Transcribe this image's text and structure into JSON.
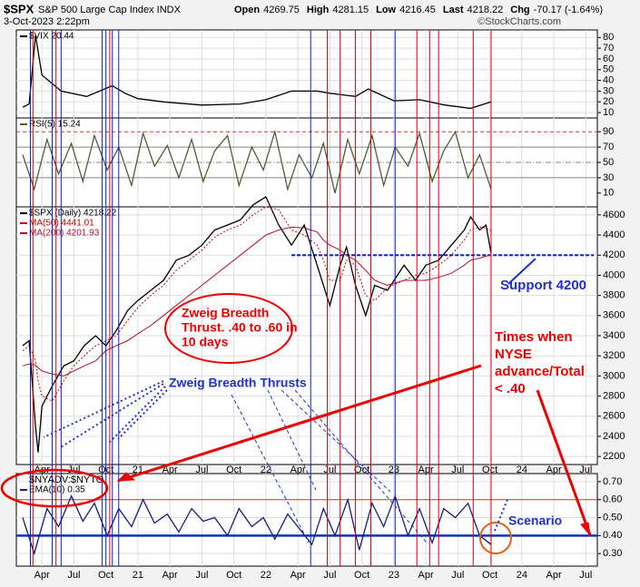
{
  "header": {
    "symbol": "$SPX",
    "name": "S&P 500 Large Cap Index INDX",
    "date": "3-Oct-2023 2:22pm",
    "quote": [
      {
        "label": "Open",
        "value": "4269.75"
      },
      {
        "label": "High",
        "value": "4281.15"
      },
      {
        "label": "Low",
        "value": "4216.45"
      },
      {
        "label": "Last",
        "value": "4218.22"
      },
      {
        "label": "Chg",
        "value": "-70.17 (-1.64%)"
      }
    ],
    "credit": "©StockCharts.com"
  },
  "annotations": {
    "zweig_thrust": [
      "Zweig Breadth",
      "Thrust. .40 to .60 in",
      "10 days"
    ],
    "thrusts": "Zweig Breadth Thrusts",
    "support": "Support 4200",
    "times": [
      "Times when",
      "NYSE",
      "advance/Total",
      "< .40"
    ],
    "scenario": "Scenario"
  },
  "markers": {
    "red": [
      2020.18,
      2020.36,
      2020.78,
      2022.48,
      2022.58,
      2022.7,
      2022.82,
      2023.18,
      2023.28,
      2023.35,
      2023.62,
      2023.76
    ],
    "blue": [
      2020.16,
      2020.33,
      2020.4,
      2020.72,
      2020.75,
      2020.8,
      2020.85,
      2022.35,
      2023.01
    ]
  },
  "xlim": [
    2020.05,
    2024.59
  ],
  "xticks": [
    {
      "value": 2020.25,
      "label": "Apr"
    },
    {
      "value": 2020.5,
      "label": "Jul"
    },
    {
      "value": 2020.75,
      "label": "Oct"
    },
    {
      "value": 2021.0,
      "label": "21"
    },
    {
      "value": 2021.25,
      "label": "Apr"
    },
    {
      "value": 2021.5,
      "label": "Jul"
    },
    {
      "value": 2021.75,
      "label": "Oct"
    },
    {
      "value": 2022.0,
      "label": "22"
    },
    {
      "value": 2022.25,
      "label": "Apr"
    },
    {
      "value": 2022.5,
      "label": "Jul"
    },
    {
      "value": 2022.75,
      "label": "Oct"
    },
    {
      "value": 2023.0,
      "label": "23"
    },
    {
      "value": 2023.25,
      "label": "Apr"
    },
    {
      "value": 2023.5,
      "label": "Jul"
    },
    {
      "value": 2023.75,
      "label": "Oct"
    },
    {
      "value": 2024.0,
      "label": "24"
    },
    {
      "value": 2024.25,
      "label": "Apr"
    },
    {
      "value": 2024.5,
      "label": "Jul"
    }
  ],
  "chart_data": [
    {
      "type": "line",
      "x": [
        2020.1,
        2020.15,
        2020.2,
        2020.25,
        2020.4,
        2020.6,
        2020.8,
        2020.9,
        2021.0,
        2021.2,
        2021.5,
        2021.8,
        2022.0,
        2022.2,
        2022.4,
        2022.5,
        2022.7,
        2022.8,
        2023.0,
        2023.2,
        2023.4,
        2023.6,
        2023.76
      ],
      "series": [
        {
          "name": "$VIX 20.44",
          "color": "#000000",
          "values": [
            15,
            18,
            82,
            45,
            30,
            25,
            35,
            28,
            23,
            20,
            17,
            18,
            22,
            30,
            30,
            28,
            25,
            32,
            21,
            22,
            17,
            14,
            20
          ]
        }
      ],
      "ylim": [
        5,
        87
      ],
      "yticks": [
        10,
        20,
        30,
        40,
        50,
        60,
        70,
        80
      ],
      "grid": true
    },
    {
      "type": "line",
      "x": [
        2020.1,
        2020.19,
        2020.29,
        2020.38,
        2020.48,
        2020.57,
        2020.66,
        2020.76,
        2020.85,
        2020.95,
        2021.04,
        2021.13,
        2021.23,
        2021.32,
        2021.42,
        2021.51,
        2021.6,
        2021.7,
        2021.79,
        2021.89,
        2021.98,
        2022.07,
        2022.17,
        2022.26,
        2022.36,
        2022.45,
        2022.54,
        2022.64,
        2022.73,
        2022.83,
        2022.92,
        2023.01,
        2023.11,
        2023.2,
        2023.3,
        2023.39,
        2023.48,
        2023.58,
        2023.67,
        2023.76
      ],
      "series": [
        {
          "name": "RSI(5) 15.24",
          "color": "#4f5e36",
          "values": [
            60,
            15,
            80,
            35,
            75,
            25,
            85,
            40,
            70,
            20,
            88,
            45,
            72,
            30,
            80,
            25,
            65,
            85,
            20,
            70,
            40,
            90,
            15,
            60,
            30,
            75,
            10,
            80,
            35,
            85,
            20,
            70,
            45,
            88,
            25,
            65,
            90,
            30,
            60,
            15
          ]
        }
      ],
      "ylim": [
        -8,
        108
      ],
      "yticks": [
        10,
        30,
        50,
        70,
        90
      ],
      "grid": false,
      "ref_lines": [
        {
          "value": 90,
          "color": "#d33",
          "dash": "4 3"
        },
        {
          "value": 70,
          "color": "#888",
          "dash": ""
        },
        {
          "value": 50,
          "color": "#888",
          "dash": "6 2 1 2"
        },
        {
          "value": 30,
          "color": "#888",
          "dash": ""
        }
      ]
    },
    {
      "type": "line",
      "x": [
        2020.1,
        2020.15,
        2020.2,
        2020.22,
        2020.25,
        2020.33,
        2020.42,
        2020.5,
        2020.58,
        2020.67,
        2020.75,
        2020.83,
        2020.92,
        2021.0,
        2021.1,
        2021.2,
        2021.3,
        2021.4,
        2021.5,
        2021.6,
        2021.7,
        2021.8,
        2021.9,
        2022.0,
        2022.1,
        2022.2,
        2022.3,
        2022.4,
        2022.45,
        2022.5,
        2022.58,
        2022.63,
        2022.7,
        2022.78,
        2022.85,
        2022.95,
        2023.08,
        2023.17,
        2023.25,
        2023.35,
        2023.45,
        2023.55,
        2023.6,
        2023.67,
        2023.72,
        2023.76
      ],
      "series": [
        {
          "name": "$SPX (Daily) 4218.22",
          "color": "#000000",
          "values": [
            3300,
            3350,
            2500,
            2240,
            2700,
            2900,
            3100,
            3150,
            3300,
            3400,
            3300,
            3450,
            3650,
            3750,
            3850,
            3950,
            4150,
            4200,
            4300,
            4450,
            4500,
            4550,
            4700,
            4780,
            4500,
            4300,
            4500,
            4100,
            3900,
            3700,
            4100,
            4280,
            3900,
            3600,
            3900,
            3850,
            4100,
            3950,
            4100,
            4150,
            4300,
            4450,
            4580,
            4450,
            4500,
            4218
          ]
        },
        {
          "name": "MA(50) 4441.01",
          "color": "#cc0000",
          "dash": "2 2",
          "values": [
            3250,
            3300,
            3150,
            2950,
            2800,
            2750,
            2950,
            3100,
            3200,
            3300,
            3350,
            3400,
            3550,
            3680,
            3800,
            3900,
            4050,
            4150,
            4250,
            4380,
            4450,
            4500,
            4600,
            4680,
            4650,
            4450,
            4400,
            4300,
            4150,
            3950,
            3950,
            4150,
            4100,
            3800,
            3750,
            3880,
            3950,
            4000,
            4020,
            4100,
            4200,
            4350,
            4450,
            4480,
            4470,
            4441
          ]
        },
        {
          "name": "MA(200) 4201.93",
          "color": "#b01030",
          "dash": "",
          "values": [
            3100,
            3120,
            3110,
            3080,
            3050,
            3020,
            3000,
            3050,
            3100,
            3150,
            3250,
            3300,
            3350,
            3420,
            3500,
            3600,
            3700,
            3800,
            3900,
            4000,
            4100,
            4200,
            4300,
            4400,
            4450,
            4480,
            4470,
            4430,
            4350,
            4300,
            4250,
            4200,
            4150,
            4050,
            3950,
            3900,
            3950,
            3950,
            3950,
            3980,
            4020,
            4100,
            4150,
            4170,
            4190,
            4202
          ]
        }
      ],
      "support_level": 4200,
      "ylim": [
        2120,
        4680
      ],
      "yticks": [
        2200,
        2400,
        2600,
        2800,
        3000,
        3200,
        3400,
        3600,
        3800,
        4000,
        4200,
        4400,
        4600
      ],
      "grid": true
    },
    {
      "type": "line",
      "x": [
        2020.1,
        2020.19,
        2020.29,
        2020.38,
        2020.48,
        2020.57,
        2020.66,
        2020.76,
        2020.85,
        2020.95,
        2021.04,
        2021.13,
        2021.23,
        2021.32,
        2021.42,
        2021.51,
        2021.6,
        2021.7,
        2021.79,
        2021.89,
        2021.98,
        2022.07,
        2022.17,
        2022.26,
        2022.36,
        2022.45,
        2022.54,
        2022.64,
        2022.73,
        2022.83,
        2022.92,
        2023.01,
        2023.11,
        2023.2,
        2023.3,
        2023.39,
        2023.48,
        2023.58,
        2023.67,
        2023.76
      ],
      "labels": [
        "$NYADV:$NYTO"
      ],
      "series": [
        {
          "name": "EMA(10) 0.35",
          "color": "#1a1a80",
          "values": [
            0.5,
            0.3,
            0.55,
            0.45,
            0.62,
            0.48,
            0.58,
            0.4,
            0.55,
            0.45,
            0.6,
            0.47,
            0.52,
            0.42,
            0.55,
            0.48,
            0.5,
            0.4,
            0.55,
            0.45,
            0.5,
            0.38,
            0.52,
            0.44,
            0.35,
            0.55,
            0.4,
            0.6,
            0.32,
            0.58,
            0.45,
            0.62,
            0.4,
            0.55,
            0.36,
            0.55,
            0.5,
            0.58,
            0.4,
            0.35
          ]
        }
      ],
      "ylim": [
        0.23,
        0.745
      ],
      "yticks": [
        {
          "value": 0.3,
          "label": "0.30"
        },
        {
          "value": 0.4,
          "label": "0.40"
        },
        {
          "value": 0.5,
          "label": "0.50"
        },
        {
          "value": 0.6,
          "label": "0.60"
        },
        {
          "value": 0.7,
          "label": "0.70"
        }
      ],
      "grid": true,
      "ref_lines": [
        {
          "value": 0.6,
          "color": "#d33",
          "dash": ""
        },
        {
          "value": 0.4,
          "color": "#1030c0",
          "dash": "",
          "width": 2.5
        }
      ]
    }
  ]
}
